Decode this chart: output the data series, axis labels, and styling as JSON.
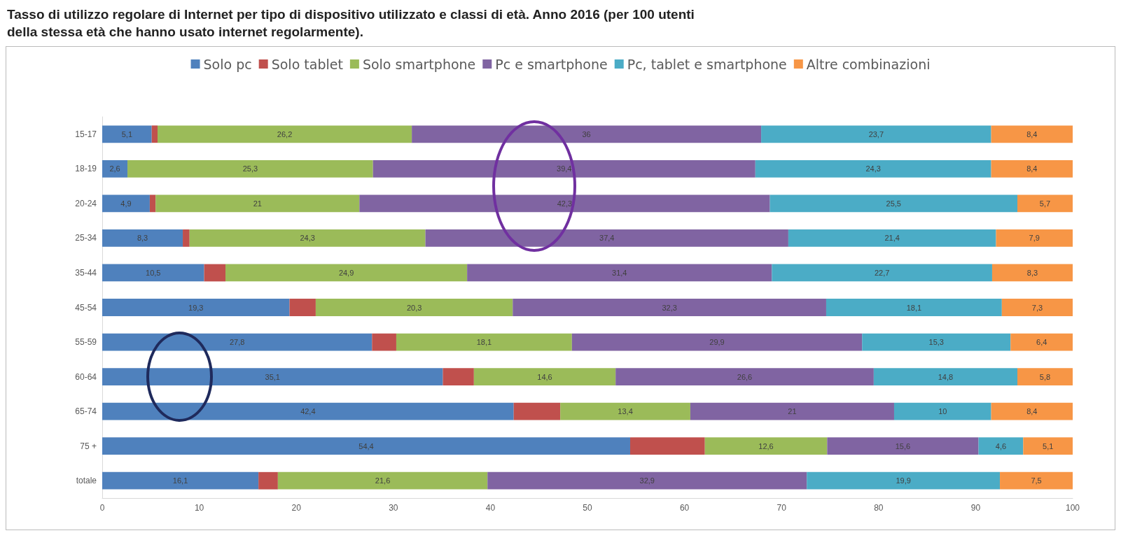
{
  "chart_data": {
    "type": "bar",
    "orientation": "horizontal",
    "stacked": true,
    "title": "Tasso di utilizzo regolare di Internet per tipo di dispositivo utilizzato e classi di età. Anno 2016 (per 100 utenti della stessa età che hanno usato internet regolarmente).",
    "categories": [
      "15-17",
      "18-19",
      "20-24",
      "25-34",
      "35-44",
      "45-54",
      "55-59",
      "60-64",
      "65-74",
      "75 +",
      "totale"
    ],
    "series": [
      {
        "name": "Solo pc",
        "color": "#4f81bd",
        "values": [
          5.1,
          2.6,
          4.9,
          8.3,
          10.5,
          19.3,
          27.8,
          35.1,
          42.4,
          54.4,
          16.1
        ],
        "value_labels": [
          "5,1",
          "2,6",
          "4,9",
          "8,3",
          "10,5",
          "19,3",
          "27,8",
          "35,1",
          "42,4",
          "54,4",
          "16,1"
        ]
      },
      {
        "name": "Solo tablet",
        "color": "#c0504d",
        "values": [
          0.6,
          0,
          0.6,
          0.7,
          2.2,
          2.7,
          2.5,
          3.2,
          4.8,
          7.7,
          2
        ]
      },
      {
        "name": "Solo smartphone",
        "color": "#9bbb59",
        "values": [
          26.2,
          25.3,
          21,
          24.3,
          24.9,
          20.3,
          18.1,
          14.6,
          13.4,
          12.6,
          21.6
        ],
        "value_labels": [
          "26,2",
          "25,3",
          "21",
          "24,3",
          "24,9",
          "20,3",
          "18,1",
          "14,6",
          "13,4",
          "12,6",
          "21,6"
        ]
      },
      {
        "name": "Pc e smartphone",
        "color": "#8064a2",
        "values": [
          36,
          39.4,
          42.3,
          37.4,
          31.4,
          32.3,
          29.9,
          26.6,
          21,
          15.6,
          32.9
        ],
        "value_labels": [
          "36",
          "39,4",
          "42,3",
          "37,4",
          "31,4",
          "32,3",
          "29,9",
          "26,6",
          "21",
          "15,6",
          "32,9"
        ]
      },
      {
        "name": "Pc, tablet e smartphone",
        "color": "#4bacc6",
        "values": [
          23.7,
          24.3,
          25.5,
          21.4,
          22.7,
          18.1,
          15.3,
          14.8,
          10,
          4.6,
          19.9
        ],
        "value_labels": [
          "23,7",
          "24,3",
          "25,5",
          "21,4",
          "22,7",
          "18,1",
          "15,3",
          "14,8",
          "10",
          "4,6",
          "19,9"
        ]
      },
      {
        "name": "Altre combinazioni",
        "color": "#f79646",
        "values": [
          8.4,
          8.4,
          5.7,
          7.9,
          8.3,
          7.3,
          6.4,
          5.8,
          8.4,
          5.1,
          7.5
        ],
        "value_labels": [
          "8,4",
          "8,4",
          "5,7",
          "7,9",
          "8,3",
          "7,3",
          "6,4",
          "5,8",
          "8,4",
          "5,1",
          "7,5"
        ]
      }
    ],
    "xlim": [
      0,
      100
    ],
    "xticks": [
      0,
      10,
      20,
      30,
      40,
      50,
      60,
      70,
      80,
      90,
      100
    ],
    "grid": false,
    "legend": "top"
  }
}
